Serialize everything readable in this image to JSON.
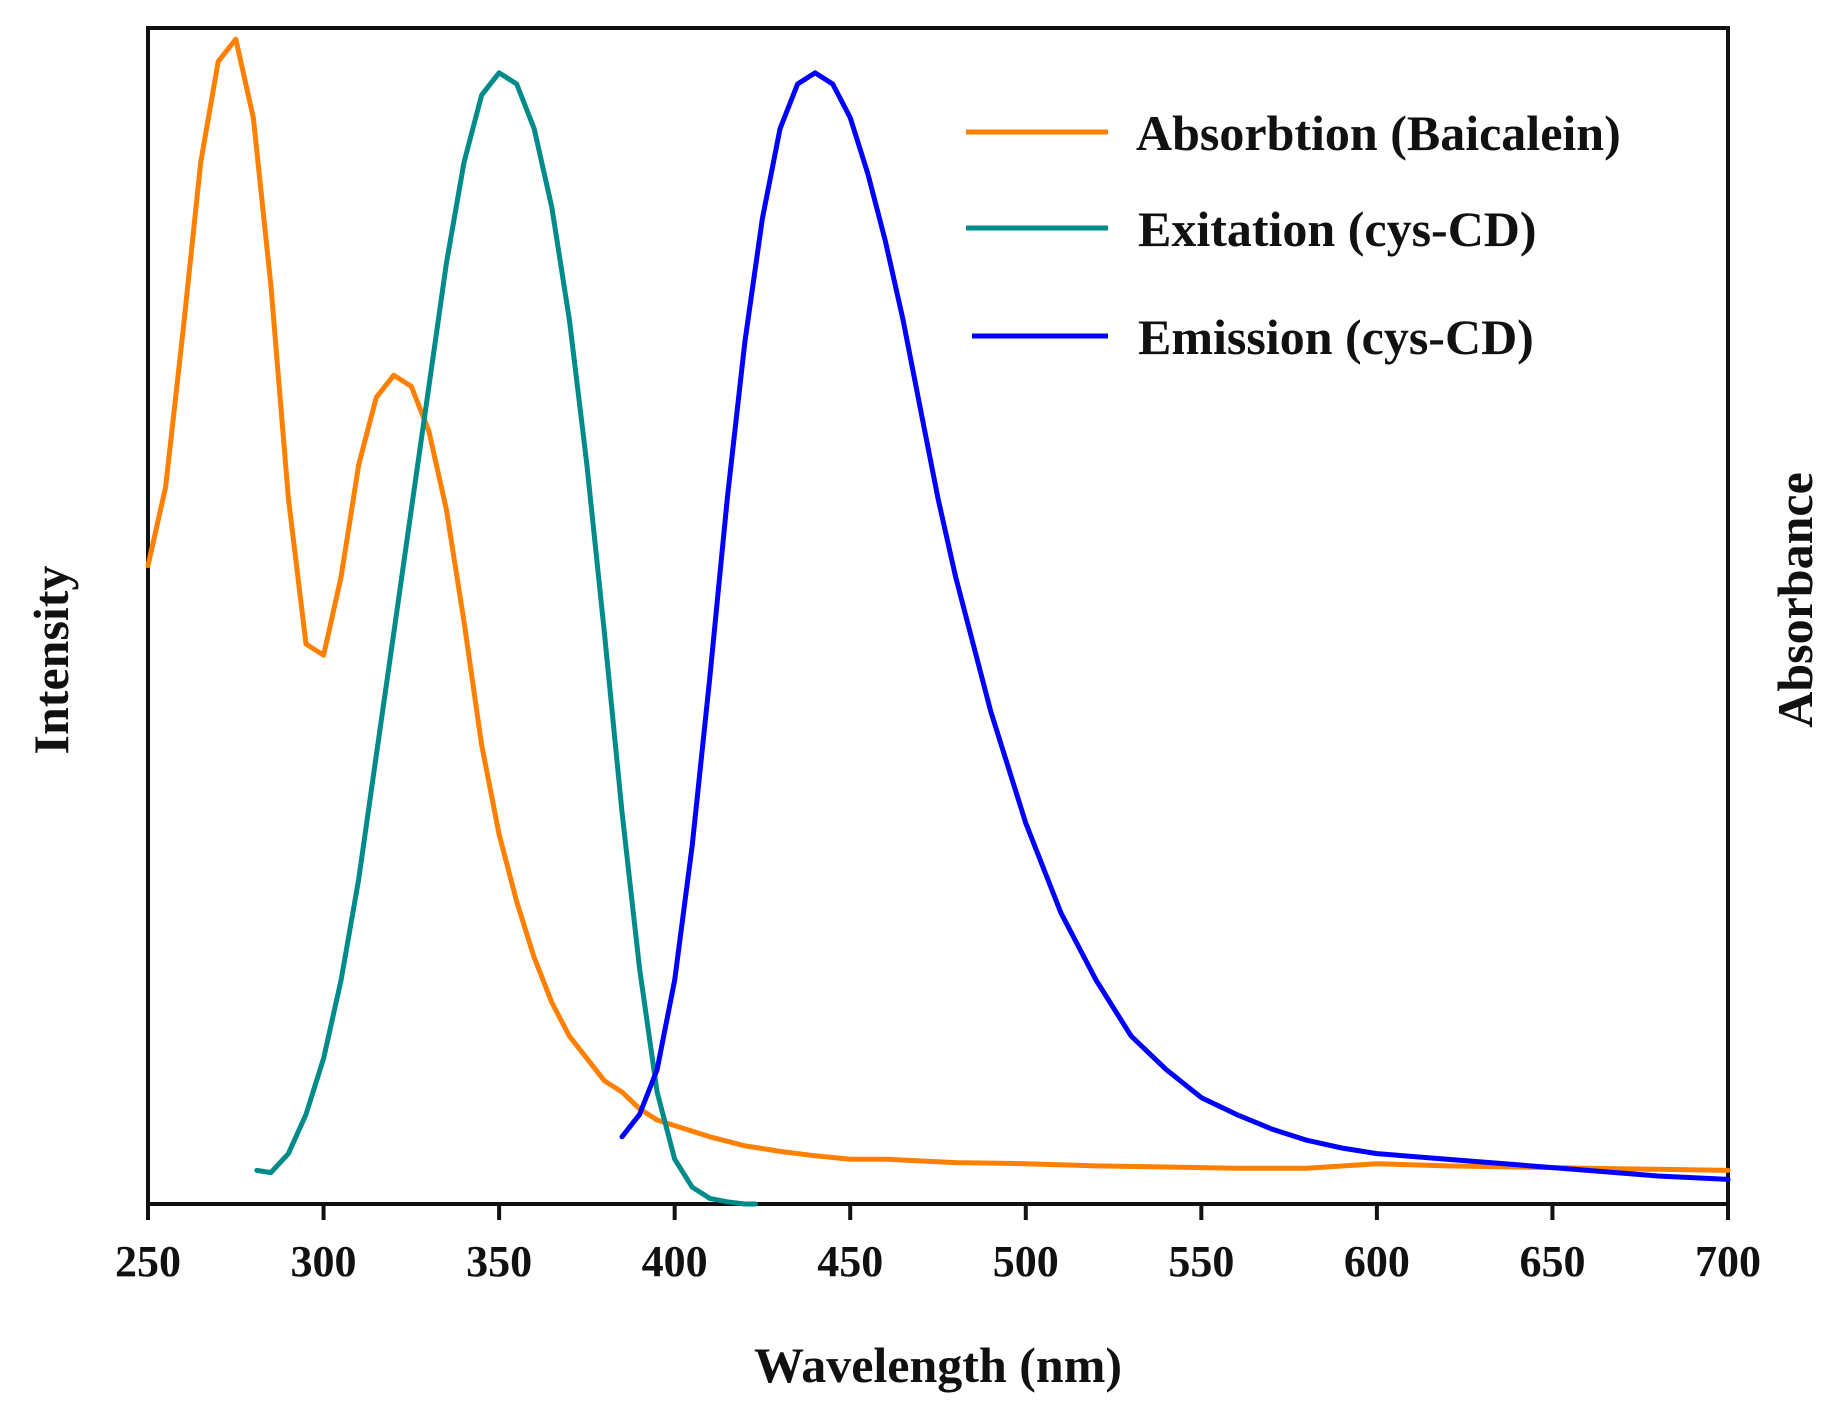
{
  "chart_data": {
    "type": "line",
    "title": "",
    "xlabel": "Wavelength (nm)",
    "ylabel_left": "Intensity",
    "ylabel_right": "Absorbance",
    "xlim": [
      250,
      700
    ],
    "ylim": [
      0,
      1.05
    ],
    "xticks": [
      "250",
      "300",
      "350",
      "400",
      "450",
      "500",
      "550",
      "600",
      "650",
      "700"
    ],
    "grid": false,
    "legend_position": "top-right",
    "series": [
      {
        "name": "Absorbtion (Baicalein)",
        "color": "#FF8000",
        "x": [
          250,
          255,
          260,
          265,
          270,
          275,
          280,
          285,
          290,
          295,
          300,
          305,
          310,
          315,
          320,
          325,
          330,
          335,
          340,
          345,
          350,
          355,
          360,
          365,
          370,
          375,
          380,
          385,
          390,
          395,
          400,
          410,
          420,
          430,
          440,
          450,
          460,
          480,
          500,
          520,
          540,
          560,
          580,
          600,
          620,
          640,
          660,
          680,
          700
        ],
        "values": [
          0.57,
          0.64,
          0.78,
          0.93,
          1.02,
          1.04,
          0.97,
          0.82,
          0.63,
          0.5,
          0.49,
          0.56,
          0.66,
          0.72,
          0.74,
          0.73,
          0.69,
          0.62,
          0.52,
          0.41,
          0.33,
          0.27,
          0.22,
          0.18,
          0.15,
          0.13,
          0.11,
          0.1,
          0.085,
          0.075,
          0.07,
          0.06,
          0.052,
          0.047,
          0.043,
          0.04,
          0.04,
          0.037,
          0.036,
          0.034,
          0.033,
          0.032,
          0.032,
          0.036,
          0.034,
          0.033,
          0.032,
          0.031,
          0.03
        ]
      },
      {
        "name": "Exitation (cys-CD)",
        "color": "#008B8B",
        "x": [
          281,
          285,
          290,
          295,
          300,
          305,
          310,
          315,
          320,
          325,
          330,
          335,
          340,
          345,
          350,
          355,
          360,
          365,
          370,
          375,
          380,
          385,
          390,
          395,
          400,
          405,
          410,
          415,
          420,
          423
        ],
        "values": [
          0.03,
          0.028,
          0.045,
          0.08,
          0.13,
          0.2,
          0.29,
          0.4,
          0.51,
          0.62,
          0.73,
          0.84,
          0.93,
          0.99,
          1.01,
          1.0,
          0.96,
          0.89,
          0.79,
          0.66,
          0.51,
          0.35,
          0.21,
          0.1,
          0.04,
          0.015,
          0.005,
          0.002,
          0.0,
          0.0
        ]
      },
      {
        "name": "Emission (cys-CD)",
        "color": "#0000FF",
        "x": [
          385,
          390,
          395,
          400,
          405,
          410,
          415,
          420,
          425,
          430,
          435,
          440,
          445,
          450,
          455,
          460,
          465,
          470,
          475,
          480,
          490,
          500,
          510,
          520,
          530,
          540,
          550,
          560,
          570,
          580,
          590,
          600,
          620,
          640,
          660,
          680,
          700
        ],
        "values": [
          0.06,
          0.08,
          0.12,
          0.2,
          0.32,
          0.47,
          0.63,
          0.77,
          0.88,
          0.96,
          1.0,
          1.01,
          1.0,
          0.97,
          0.92,
          0.86,
          0.79,
          0.71,
          0.63,
          0.56,
          0.44,
          0.34,
          0.26,
          0.2,
          0.15,
          0.12,
          0.095,
          0.08,
          0.067,
          0.057,
          0.05,
          0.045,
          0.04,
          0.035,
          0.03,
          0.025,
          0.022
        ]
      }
    ]
  }
}
